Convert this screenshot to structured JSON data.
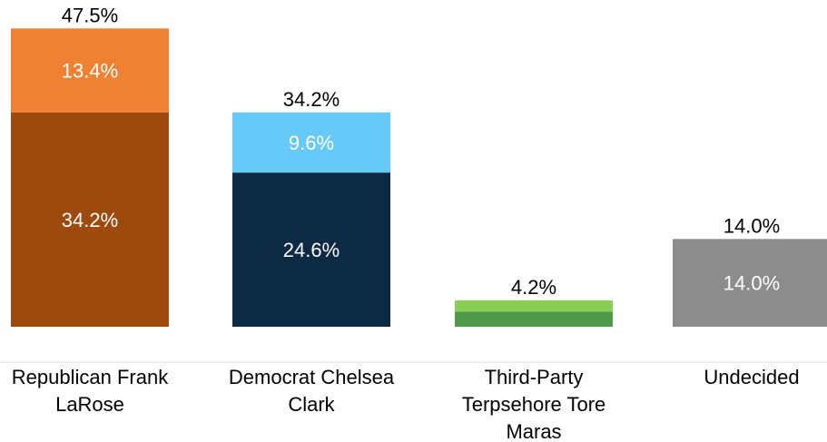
{
  "chart_data": {
    "type": "bar",
    "stacked": true,
    "categories": [
      [
        "Republican Frank",
        "LaRose"
      ],
      [
        "Democrat Chelsea",
        "Clark"
      ],
      [
        "Third-Party",
        "Terpsehore Tore",
        "Maras"
      ],
      [
        "Undecided"
      ]
    ],
    "segments": [
      [
        {
          "value": 34.2,
          "label": "34.2%",
          "color": "#9e4a0e"
        },
        {
          "value": 13.4,
          "label": "13.4%",
          "color": "#ef8133"
        }
      ],
      [
        {
          "value": 24.6,
          "label": "24.6%",
          "color": "#0d2a45"
        },
        {
          "value": 9.6,
          "label": "9.6%",
          "color": "#66c9f8"
        }
      ],
      [
        {
          "value": 2.4,
          "label": "",
          "color": "#4e9a48"
        },
        {
          "value": 1.8,
          "label": "",
          "color": "#8acd55"
        }
      ],
      [
        {
          "value": 14.0,
          "label": "14.0%",
          "color": "#8c8c8c"
        }
      ]
    ],
    "totals": [
      "47.5%",
      "34.2%",
      "4.2%",
      "14.0%"
    ],
    "ylim": [
      0,
      47.5
    ],
    "grid": false,
    "legend": "none",
    "title": "",
    "xlabel": "",
    "ylabel": ""
  },
  "colors": {
    "segment_label": "#ffffff",
    "total_label": "#000000",
    "axis_line": "#d9d9d9"
  }
}
